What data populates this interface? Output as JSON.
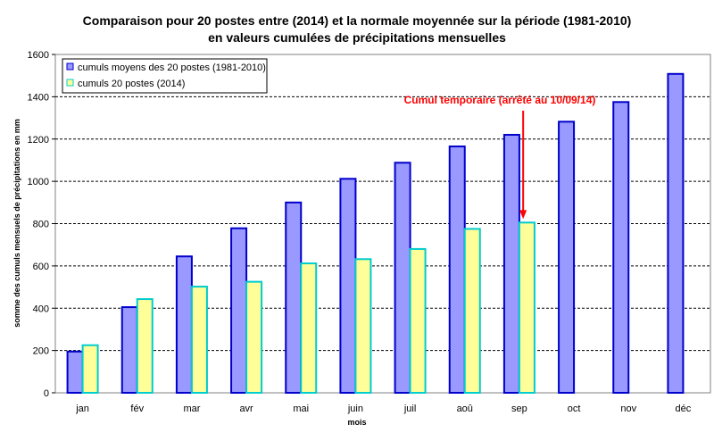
{
  "chart_data": {
    "type": "bar",
    "title": "Comparaison pour 20 postes entre (2014) et la  normale moyennée sur la période (1981-2010)",
    "subtitle": "en valeurs cumulées de précipitations mensuelles",
    "xlabel": "mois",
    "ylabel": "somme des cumuls mensuels de précipitations en mm",
    "categories": [
      "jan",
      "fév",
      "mar",
      "avr",
      "mai",
      "juin",
      "juil",
      "aoû",
      "sep",
      "oct",
      "nov",
      "déc"
    ],
    "ylim": [
      0,
      1600
    ],
    "yticks": [
      "0",
      "200",
      "400",
      "600",
      "800",
      "1000",
      "1200",
      "1400",
      "1600"
    ],
    "grid": true,
    "legend_position": "top-left",
    "series": [
      {
        "name": "cumuls moyens des 20 postes (1981-2010)",
        "color": "#9999FF",
        "edge_color": "#0000CC",
        "values": [
          195,
          405,
          645,
          778,
          900,
          1012,
          1088,
          1165,
          1220,
          1282,
          1375,
          1508
        ]
      },
      {
        "name": "cumuls 20 postes (2014)",
        "color": "#FFFF99",
        "edge_color": "#00CCCC",
        "values": [
          225,
          443,
          502,
          525,
          612,
          632,
          680,
          775,
          805,
          null,
          null,
          null
        ]
      }
    ],
    "annotation": {
      "text": "Cumul temporaire (arrêté au 10/09/14)",
      "color": "#FF0000",
      "target_category": "sep",
      "target_series": 1
    }
  }
}
